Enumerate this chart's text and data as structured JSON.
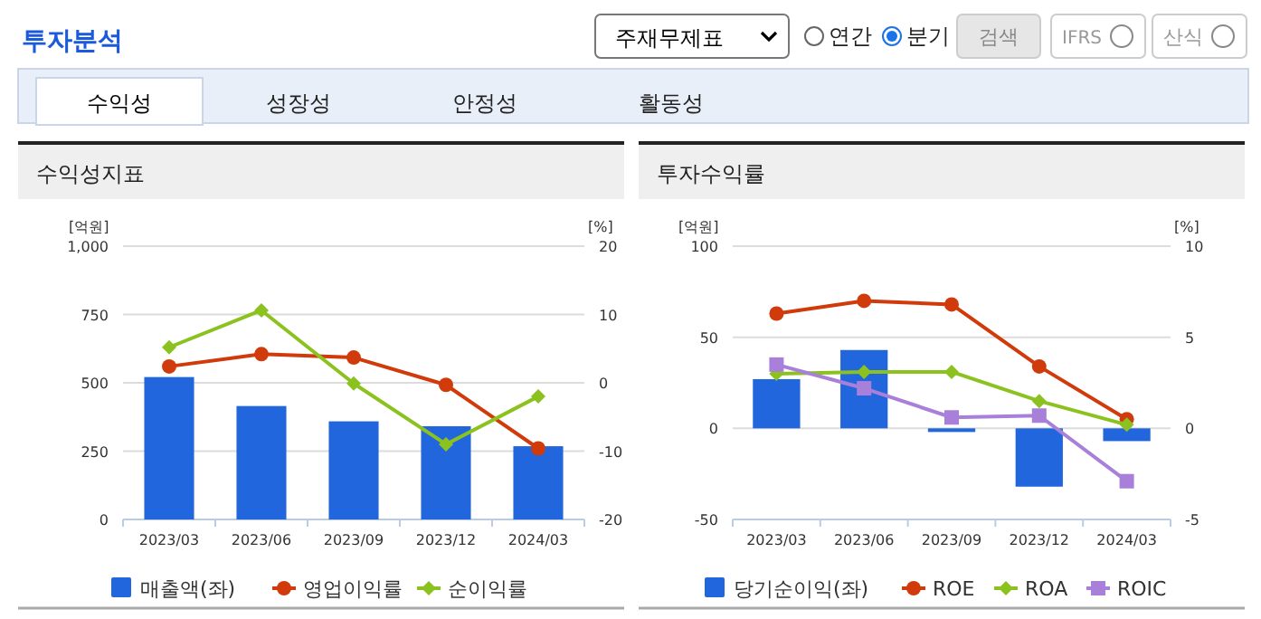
{
  "chart_data": [
    {
      "type": "other",
      "annotations": [
        "투자분석",
        "주재무제표",
        "연간",
        "분기",
        "검색",
        "IFRS",
        "산식",
        "수익성",
        "성장성",
        "안정성",
        "활동성"
      ]
    },
    {
      "type": "bar",
      "title": "수익성지표",
      "ylabel": "[억원]",
      "y2label": "[%]",
      "categories": [
        "2023/03",
        "2023/06",
        "2023/09",
        "2023/12",
        "2024/03"
      ],
      "ylim": [
        0,
        1000
      ],
      "yticks": [
        0,
        250,
        500,
        750,
        {
          "value": 1000,
          "label": "1,000"
        }
      ],
      "y2lim": [
        -20,
        20
      ],
      "y2ticks": [
        -20,
        -10,
        0,
        10,
        20
      ],
      "grid": "y",
      "legend": "bottom",
      "series": [
        {
          "name": "매출액(좌)",
          "type": "bar",
          "color": "#2266dd",
          "values": [
            521,
            415,
            359,
            341,
            268
          ]
        },
        {
          "name": "영업이익률",
          "type": "line",
          "axis": "y2",
          "marker": "circle",
          "color": "#d13b0b",
          "values": [
            2.4,
            4.2,
            3.7,
            -0.3,
            -9.6
          ]
        },
        {
          "name": "순이익률",
          "type": "line",
          "axis": "y2",
          "marker": "diamond",
          "color": "#8cc21f",
          "values": [
            5.2,
            10.6,
            -0.1,
            -9.0,
            -2.0
          ]
        }
      ]
    },
    {
      "type": "bar",
      "title": "투자수익률",
      "ylabel": "[억원]",
      "y2label": "[%]",
      "categories": [
        "2023/03",
        "2023/06",
        "2023/09",
        "2023/12",
        "2024/03"
      ],
      "ylim": [
        -50,
        100
      ],
      "yticks": [
        -50,
        0,
        50,
        100
      ],
      "y2lim": [
        -5,
        10
      ],
      "y2ticks": [
        -5,
        0,
        5,
        10
      ],
      "grid": "y",
      "legend": "bottom",
      "series": [
        {
          "name": "당기순이익(좌)",
          "type": "bar",
          "color": "#2266dd",
          "values": [
            27,
            43,
            -2,
            -32,
            -7
          ]
        },
        {
          "name": "ROE",
          "type": "line",
          "axis": "y2",
          "marker": "circle",
          "color": "#d13b0b",
          "values": [
            6.3,
            7.0,
            6.8,
            3.4,
            0.5
          ]
        },
        {
          "name": "ROA",
          "type": "line",
          "axis": "y2",
          "marker": "diamond",
          "color": "#8cc21f",
          "values": [
            3.0,
            3.1,
            3.1,
            1.5,
            0.2
          ]
        },
        {
          "name": "ROIC",
          "type": "line",
          "axis": "y2",
          "marker": "square",
          "color": "#a87fd9",
          "values": [
            3.5,
            2.2,
            0.6,
            0.7,
            -2.9
          ]
        }
      ]
    }
  ]
}
